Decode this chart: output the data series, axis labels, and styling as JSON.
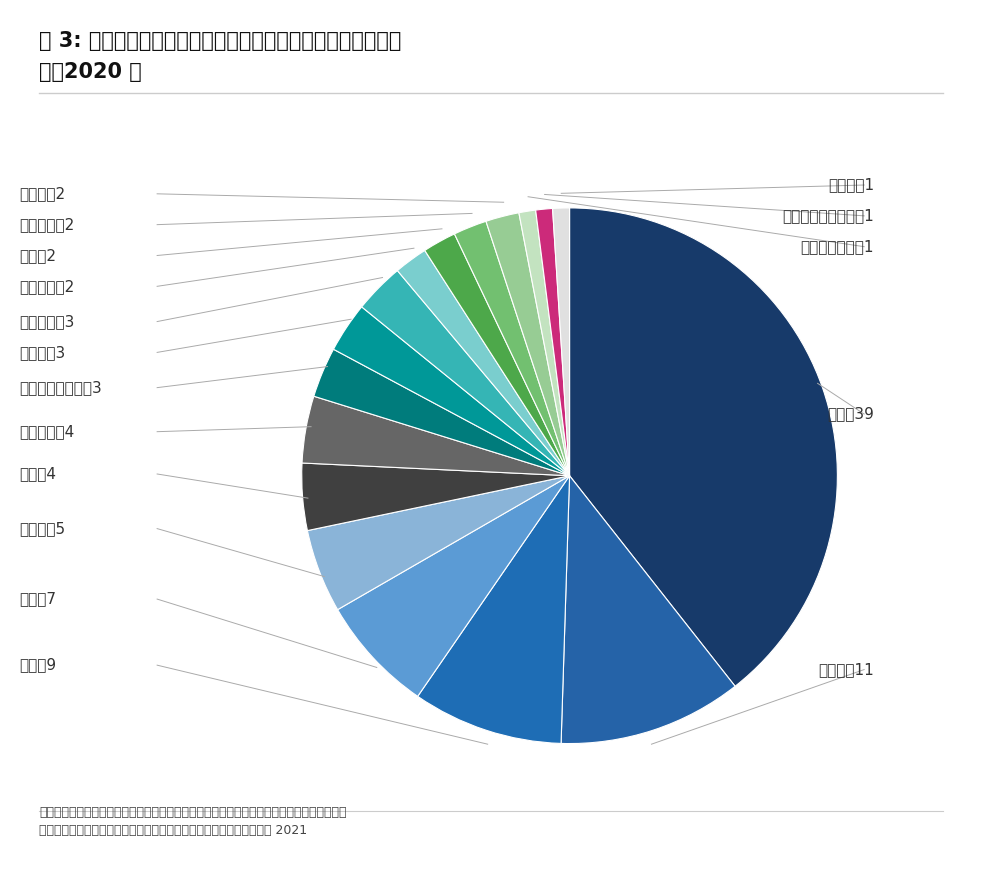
{
  "title_line1": "図 3: 国別の米ドル建てミリオネアの数（世界全体に占める割",
  "title_line2": "合）2020 年",
  "footnote": "図２と図３の出所：ジェームズ・デイヴィーズ、ロドリゴルベラスおよびアンソニー・ショ\nロックス、クレディ・スイス・グローバル・ウェルス・データブック 2021",
  "labels": [
    "米国",
    "その他",
    "中国",
    "日本",
    "ドイツ",
    "英国",
    "フランス",
    "オーストラリア",
    "カナダ",
    "イタリア",
    "スペイン",
    "韓国",
    "オランダ",
    "スイス",
    "スウェーデン",
    "台湾（中華台北）",
    "インド"
  ],
  "values": [
    39,
    11,
    9,
    7,
    5,
    4,
    4,
    3,
    3,
    3,
    2,
    2,
    2,
    2,
    1,
    1,
    1
  ],
  "colors": [
    "#173a6a",
    "#2563a8",
    "#1e6db5",
    "#5b9bd5",
    "#8ab4d8",
    "#404040",
    "#666666",
    "#007c7c",
    "#009898",
    "#35b5b5",
    "#7acece",
    "#4da84a",
    "#72c070",
    "#97cc94",
    "#c3e3c0",
    "#cc2a7a",
    "#e0e0e0"
  ],
  "background_color": "#ffffff",
  "title_fontsize": 15,
  "label_fontsize": 11,
  "footnote_fontsize": 9,
  "figsize": [
    9.82,
    8.81
  ]
}
